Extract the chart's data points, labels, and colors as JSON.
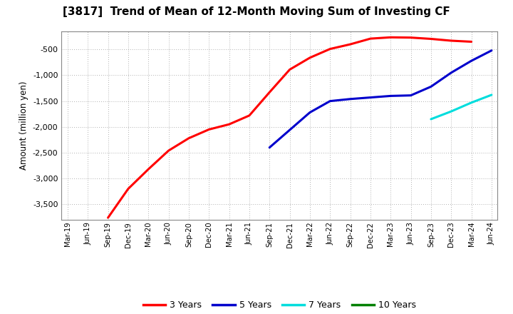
{
  "title": "[3817]  Trend of Mean of 12-Month Moving Sum of Investing CF",
  "ylabel": "Amount (million yen)",
  "background_color": "#ffffff",
  "plot_bg_color": "#ffffff",
  "grid_color": "#b0b0b0",
  "ylim": [
    -3800,
    -150
  ],
  "yticks": [
    -500,
    -1000,
    -1500,
    -2000,
    -2500,
    -3000,
    -3500
  ],
  "series": {
    "3yr": {
      "color": "#ff0000",
      "points": [
        [
          "Sep-19",
          -3760
        ],
        [
          "Dec-19",
          -3200
        ],
        [
          "Mar-20",
          -2820
        ],
        [
          "Jun-20",
          -2460
        ],
        [
          "Sep-20",
          -2220
        ],
        [
          "Dec-20",
          -2050
        ],
        [
          "Mar-21",
          -1950
        ],
        [
          "Jun-21",
          -1780
        ],
        [
          "Sep-21",
          -1330
        ],
        [
          "Dec-21",
          -890
        ],
        [
          "Mar-22",
          -660
        ],
        [
          "Jun-22",
          -490
        ],
        [
          "Sep-22",
          -400
        ],
        [
          "Dec-22",
          -290
        ],
        [
          "Mar-23",
          -265
        ],
        [
          "Jun-23",
          -270
        ],
        [
          "Sep-23",
          -295
        ],
        [
          "Dec-23",
          -330
        ],
        [
          "Mar-24",
          -350
        ]
      ]
    },
    "5yr": {
      "color": "#0000cc",
      "points": [
        [
          "Sep-21",
          -2400
        ],
        [
          "Dec-21",
          -2060
        ],
        [
          "Mar-22",
          -1720
        ],
        [
          "Jun-22",
          -1500
        ],
        [
          "Sep-22",
          -1460
        ],
        [
          "Dec-22",
          -1430
        ],
        [
          "Mar-23",
          -1400
        ],
        [
          "Jun-23",
          -1390
        ],
        [
          "Sep-23",
          -1220
        ],
        [
          "Dec-23",
          -950
        ],
        [
          "Mar-24",
          -720
        ],
        [
          "Jun-24",
          -520
        ]
      ]
    },
    "7yr": {
      "color": "#00dddd",
      "points": [
        [
          "Sep-23",
          -1850
        ],
        [
          "Dec-23",
          -1700
        ],
        [
          "Mar-24",
          -1530
        ],
        [
          "Jun-24",
          -1380
        ]
      ]
    },
    "10yr": {
      "color": "#008000",
      "points": []
    }
  },
  "xtick_labels": [
    "Mar-19",
    "Jun-19",
    "Sep-19",
    "Dec-19",
    "Mar-20",
    "Jun-20",
    "Sep-20",
    "Dec-20",
    "Mar-21",
    "Jun-21",
    "Sep-21",
    "Dec-21",
    "Mar-22",
    "Jun-22",
    "Sep-22",
    "Dec-22",
    "Mar-23",
    "Jun-23",
    "Sep-23",
    "Dec-23",
    "Mar-24",
    "Jun-24"
  ],
  "legend": [
    {
      "label": "3 Years",
      "color": "#ff0000"
    },
    {
      "label": "5 Years",
      "color": "#0000cc"
    },
    {
      "label": "7 Years",
      "color": "#00dddd"
    },
    {
      "label": "10 Years",
      "color": "#008000"
    }
  ]
}
